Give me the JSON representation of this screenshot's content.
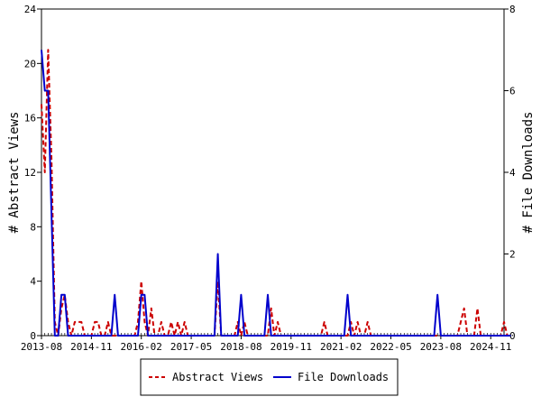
{
  "chart_data": {
    "type": "line",
    "left_axis": {
      "label": "# Abstract Views",
      "ylim": [
        0,
        24
      ],
      "ticks": [
        "0",
        "4",
        "8",
        "12",
        "16",
        "20",
        "24"
      ]
    },
    "right_axis": {
      "label": "# File Downloads",
      "ylim": [
        0,
        8
      ],
      "ticks": [
        "0",
        "2",
        "4",
        "6",
        "8"
      ]
    },
    "x_tick_labels": [
      "2013-08",
      "2014-11",
      "2016-02",
      "2017-05",
      "2018-08",
      "2019-11",
      "2021-02",
      "2022-05",
      "2023-08",
      "2024-11"
    ],
    "x_start_label": "2013-08",
    "x_months": 140,
    "grid": false,
    "legend_position": "bottom-center",
    "series": [
      {
        "name": "Abstract Views",
        "axis": "left",
        "color": "#cc0000",
        "style": "dashed",
        "values": [
          17,
          12,
          21,
          13,
          1,
          0,
          2,
          3,
          1,
          0,
          1,
          1,
          1,
          0,
          0,
          0,
          1,
          1,
          0,
          0,
          1,
          0,
          0,
          0,
          0,
          0,
          0,
          0,
          0,
          1,
          4,
          1,
          0,
          2,
          0,
          0,
          1,
          0,
          0,
          1,
          0,
          1,
          0,
          1,
          0,
          0,
          0,
          0,
          0,
          0,
          0,
          0,
          0,
          4,
          0,
          0,
          0,
          0,
          0,
          1,
          0,
          1,
          0,
          0,
          0,
          0,
          0,
          0,
          0,
          2,
          0,
          1,
          0,
          0,
          0,
          0,
          0,
          0,
          0,
          0,
          0,
          0,
          0,
          0,
          0,
          1,
          0,
          0,
          0,
          0,
          0,
          0,
          0,
          1,
          0,
          1,
          0,
          0,
          1,
          0,
          0,
          0,
          0,
          0,
          0,
          0,
          0,
          0,
          0,
          0,
          0,
          0,
          0,
          0,
          0,
          0,
          0,
          0,
          0,
          0,
          0,
          0,
          0,
          0,
          0,
          0,
          1,
          2,
          0,
          0,
          0,
          2,
          0,
          0,
          0,
          0,
          0,
          0,
          0,
          1,
          0,
          0
        ]
      },
      {
        "name": "File Downloads",
        "axis": "right",
        "color": "#0000cc",
        "style": "solid",
        "values": [
          7,
          6,
          6,
          3,
          0,
          0,
          1,
          1,
          0,
          0,
          0,
          0,
          0,
          0,
          0,
          0,
          0,
          0,
          0,
          0,
          0,
          0,
          1,
          0,
          0,
          0,
          0,
          0,
          0,
          0,
          1,
          1,
          0,
          0,
          0,
          0,
          0,
          0,
          0,
          0,
          0,
          0,
          0,
          0,
          0,
          0,
          0,
          0,
          0,
          0,
          0,
          0,
          0,
          2,
          0,
          0,
          0,
          0,
          0,
          0,
          1,
          0,
          0,
          0,
          0,
          0,
          0,
          0,
          1,
          0,
          0,
          0,
          0,
          0,
          0,
          0,
          0,
          0,
          0,
          0,
          0,
          0,
          0,
          0,
          0,
          0,
          0,
          0,
          0,
          0,
          0,
          0,
          1,
          0,
          0,
          0,
          0,
          0,
          0,
          0,
          0,
          0,
          0,
          0,
          0,
          0,
          0,
          0,
          0,
          0,
          0,
          0,
          0,
          0,
          0,
          0,
          0,
          0,
          0,
          1,
          0,
          0,
          0,
          0,
          0,
          0,
          0,
          0,
          0,
          0,
          0,
          0,
          0,
          0,
          0,
          0,
          0,
          0,
          0,
          0,
          0,
          0
        ]
      }
    ]
  }
}
